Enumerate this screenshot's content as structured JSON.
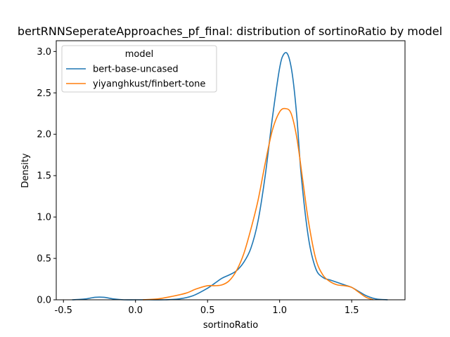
{
  "chart_data": {
    "type": "line",
    "title": "bertRNNSeperateApproaches_pf_final: distribution of sortinoRatio by model",
    "xlabel": "sortinoRatio",
    "ylabel": "Density",
    "xlim": [
      -0.55,
      1.87
    ],
    "ylim": [
      0,
      3.13
    ],
    "xticks": [
      -0.5,
      0.0,
      0.5,
      1.0,
      1.5
    ],
    "xtick_labels": [
      "-0.5",
      "0.0",
      "0.5",
      "1.0",
      "1.5"
    ],
    "yticks": [
      0.0,
      0.5,
      1.0,
      1.5,
      2.0,
      2.5,
      3.0
    ],
    "ytick_labels": [
      "0.0",
      "0.5",
      "1.0",
      "1.5",
      "2.0",
      "2.5",
      "3.0"
    ],
    "grid": false,
    "legend": {
      "title": "model",
      "placement": "top-left"
    },
    "series": [
      {
        "name": "bert-base-uncased",
        "color": "#1f77b4",
        "x": [
          -0.44,
          -0.35,
          -0.28,
          -0.22,
          -0.15,
          -0.08,
          0.0,
          0.1,
          0.2,
          0.3,
          0.4,
          0.5,
          0.55,
          0.6,
          0.65,
          0.7,
          0.75,
          0.8,
          0.85,
          0.9,
          0.95,
          1.0,
          1.03,
          1.06,
          1.09,
          1.12,
          1.15,
          1.2,
          1.25,
          1.3,
          1.35,
          1.4,
          1.45,
          1.5,
          1.55,
          1.6,
          1.67,
          1.75
        ],
        "y": [
          0.0,
          0.01,
          0.03,
          0.03,
          0.01,
          0.0,
          0.0,
          0.0,
          0.0,
          0.01,
          0.05,
          0.14,
          0.2,
          0.26,
          0.3,
          0.35,
          0.45,
          0.62,
          0.95,
          1.5,
          2.2,
          2.8,
          2.97,
          2.95,
          2.7,
          2.2,
          1.5,
          0.75,
          0.38,
          0.27,
          0.24,
          0.21,
          0.18,
          0.15,
          0.1,
          0.05,
          0.01,
          0.0
        ]
      },
      {
        "name": "yiyanghkust/finbert-tone",
        "color": "#ff7f0e",
        "x": [
          0.05,
          0.15,
          0.25,
          0.35,
          0.42,
          0.5,
          0.55,
          0.6,
          0.65,
          0.7,
          0.75,
          0.8,
          0.85,
          0.9,
          0.95,
          1.0,
          1.04,
          1.08,
          1.12,
          1.16,
          1.2,
          1.25,
          1.3,
          1.35,
          1.4,
          1.45,
          1.5,
          1.55,
          1.6,
          1.65
        ],
        "y": [
          0.0,
          0.01,
          0.04,
          0.08,
          0.13,
          0.17,
          0.17,
          0.18,
          0.23,
          0.35,
          0.55,
          0.85,
          1.2,
          1.65,
          2.05,
          2.27,
          2.31,
          2.25,
          1.95,
          1.45,
          0.95,
          0.5,
          0.3,
          0.22,
          0.18,
          0.17,
          0.15,
          0.09,
          0.03,
          0.0
        ]
      }
    ]
  }
}
